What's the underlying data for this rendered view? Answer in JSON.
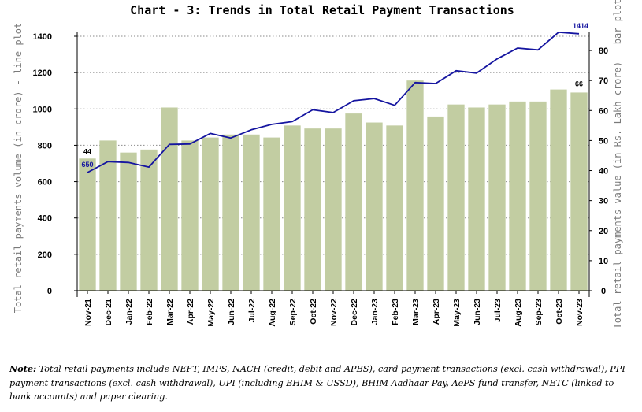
{
  "chart_data": {
    "type": "bar+line",
    "title": "Chart - 3: Trends in Total Retail Payment Transactions",
    "categories": [
      "Nov-21",
      "Dec-21",
      "Jan-22",
      "Feb-22",
      "Mar-22",
      "Apr-22",
      "May-22",
      "Jun-22",
      "Jul-22",
      "Aug-22",
      "Sep-22",
      "Oct-22",
      "Nov-22",
      "Dec-22",
      "Jan-23",
      "Feb-23",
      "Mar-23",
      "Apr-23",
      "May-23",
      "Jun-23",
      "Jul-23",
      "Aug-23",
      "Sep-23",
      "Oct-23",
      "Nov-23"
    ],
    "series": [
      {
        "kind": "bar",
        "axis": "right",
        "color": "#c2cda2",
        "values": [
          44,
          50,
          46,
          47,
          61,
          50,
          51,
          52,
          52,
          51,
          55,
          54,
          54,
          59,
          56,
          55,
          70,
          58,
          62,
          61,
          62,
          63,
          63,
          67,
          66
        ]
      },
      {
        "kind": "line",
        "axis": "left",
        "color": "#1515a0",
        "values": [
          650,
          710,
          705,
          680,
          805,
          807,
          865,
          840,
          885,
          915,
          930,
          995,
          980,
          1045,
          1057,
          1020,
          1145,
          1140,
          1210,
          1197,
          1275,
          1335,
          1325,
          1422,
          1414
        ]
      }
    ],
    "data_labels": {
      "bar_first": "44",
      "bar_last": "66",
      "line_first": "650",
      "line_last": "1414"
    },
    "y_left": {
      "label": "Total retail payments volume (in crore) - line plot",
      "ylim": [
        0,
        1400
      ],
      "ticks": [
        "0",
        "200",
        "400",
        "600",
        "800",
        "1000",
        "1200",
        "1400"
      ]
    },
    "y_right": {
      "label": "Total retail payments value (in Rs. Lakh crore) - bar plot",
      "ylim": [
        0,
        85
      ],
      "ticks": [
        "0",
        "10",
        "20",
        "30",
        "40",
        "50",
        "60",
        "70",
        "80"
      ]
    },
    "grid": true
  },
  "note": {
    "prefix": "Note:",
    "text": " Total retail payments include NEFT, IMPS, NACH (credit, debit and APBS), card payment transactions (excl. cash withdrawal), PPI payment transactions (excl. cash withdrawal), UPI (including BHIM & USSD), BHIM Aadhaar Pay, AePS fund transfer, NETC (linked to bank accounts) and paper clearing."
  }
}
